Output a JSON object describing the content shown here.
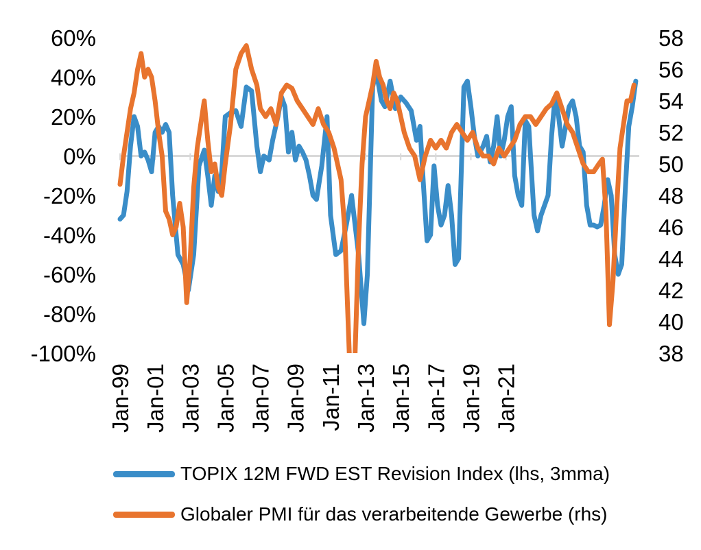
{
  "chart_data": {
    "type": "line",
    "x_ticks": [
      "Jan-99",
      "Jan-01",
      "Jan-03",
      "Jan-05",
      "Jan-07",
      "Jan-09",
      "Jan-11",
      "Jan-13",
      "Jan-15",
      "Jan-17",
      "Jan-19",
      "Jan-21"
    ],
    "y_left": {
      "ticks": [
        "60%",
        "40%",
        "20%",
        "0%",
        "-20%",
        "-40%",
        "-60%",
        "-80%",
        "-100%"
      ],
      "range": [
        -100,
        60
      ]
    },
    "y_right": {
      "ticks": [
        "58",
        "56",
        "54",
        "52",
        "50",
        "48",
        "46",
        "44",
        "42",
        "40",
        "38"
      ],
      "range": [
        38,
        58
      ]
    },
    "zero_line": true,
    "legend_position": "bottom",
    "series": [
      {
        "name": "TOPIX 12M FWD EST Revision Index (lhs, 3mma)",
        "axis": "left",
        "color": "#3A8DC8",
        "x_start": "1999-01",
        "points": [
          [
            1999.0,
            -32
          ],
          [
            1999.2,
            -30
          ],
          [
            1999.4,
            -18
          ],
          [
            1999.6,
            5
          ],
          [
            1999.8,
            20
          ],
          [
            2000.0,
            15
          ],
          [
            2000.2,
            0
          ],
          [
            2000.4,
            2
          ],
          [
            2000.6,
            -2
          ],
          [
            2000.8,
            -8
          ],
          [
            2001.0,
            12
          ],
          [
            2001.2,
            15
          ],
          [
            2001.4,
            12
          ],
          [
            2001.6,
            16
          ],
          [
            2001.8,
            12
          ],
          [
            2002.0,
            -20
          ],
          [
            2002.3,
            -50
          ],
          [
            2002.6,
            -55
          ],
          [
            2002.9,
            -68
          ],
          [
            2003.2,
            -50
          ],
          [
            2003.5,
            -5
          ],
          [
            2003.8,
            3
          ],
          [
            2004.0,
            -10
          ],
          [
            2004.2,
            -25
          ],
          [
            2004.4,
            -10
          ],
          [
            2004.6,
            -18
          ],
          [
            2004.8,
            -8
          ],
          [
            2005.0,
            20
          ],
          [
            2005.3,
            22
          ],
          [
            2005.6,
            23
          ],
          [
            2005.9,
            15
          ],
          [
            2006.2,
            35
          ],
          [
            2006.5,
            33
          ],
          [
            2006.8,
            5
          ],
          [
            2007.0,
            -8
          ],
          [
            2007.2,
            0
          ],
          [
            2007.5,
            -2
          ],
          [
            2007.7,
            8
          ],
          [
            2008.0,
            20
          ],
          [
            2008.2,
            30
          ],
          [
            2008.4,
            25
          ],
          [
            2008.6,
            2
          ],
          [
            2008.8,
            12
          ],
          [
            2009.0,
            -2
          ],
          [
            2009.2,
            5
          ],
          [
            2009.4,
            2
          ],
          [
            2009.6,
            -2
          ],
          [
            2009.8,
            -10
          ],
          [
            2010.0,
            -20
          ],
          [
            2010.2,
            -22
          ],
          [
            2010.5,
            -5
          ],
          [
            2010.8,
            20
          ],
          [
            2011.0,
            -30
          ],
          [
            2011.3,
            -50
          ],
          [
            2011.6,
            -48
          ],
          [
            2011.9,
            -35
          ],
          [
            2012.2,
            -20
          ],
          [
            2012.6,
            -50
          ],
          [
            2012.9,
            -85
          ],
          [
            2013.1,
            -60
          ],
          [
            2013.4,
            35
          ],
          [
            2013.6,
            43
          ],
          [
            2013.9,
            28
          ],
          [
            2014.1,
            25
          ],
          [
            2014.4,
            38
          ],
          [
            2014.7,
            24
          ],
          [
            2015.0,
            30
          ],
          [
            2015.3,
            27
          ],
          [
            2015.6,
            23
          ],
          [
            2015.9,
            8
          ],
          [
            2016.1,
            15
          ],
          [
            2016.3,
            -15
          ],
          [
            2016.5,
            -43
          ],
          [
            2016.7,
            -40
          ],
          [
            2016.9,
            -5
          ],
          [
            2017.1,
            -25
          ],
          [
            2017.3,
            -35
          ],
          [
            2017.5,
            -30
          ],
          [
            2017.7,
            -15
          ],
          [
            2017.9,
            -30
          ],
          [
            2018.1,
            -55
          ],
          [
            2018.3,
            -52
          ],
          [
            2018.6,
            35
          ],
          [
            2018.8,
            38
          ],
          [
            2019.0,
            25
          ],
          [
            2019.2,
            10
          ],
          [
            2019.4,
            0
          ],
          [
            2019.7,
            5
          ],
          [
            2019.9,
            10
          ],
          [
            2020.1,
            -3
          ],
          [
            2020.3,
            5
          ],
          [
            2020.5,
            20
          ],
          [
            2020.7,
            0
          ],
          [
            2020.9,
            8
          ],
          [
            2021.1,
            20
          ],
          [
            2021.3,
            25
          ],
          [
            2021.5,
            -10
          ],
          [
            2021.7,
            -20
          ],
          [
            2021.9,
            -25
          ],
          [
            2022.1,
            18
          ],
          [
            2022.3,
            15
          ],
          [
            2022.6,
            -30
          ],
          [
            2022.8,
            -38
          ],
          [
            2023.0,
            -30
          ],
          [
            2023.2,
            -25
          ],
          [
            2023.4,
            -20
          ],
          [
            2023.6,
            10
          ],
          [
            2023.8,
            30
          ],
          [
            2024.0,
            20
          ],
          [
            2024.2,
            5
          ],
          [
            2024.4,
            15
          ],
          [
            2024.6,
            25
          ],
          [
            2024.8,
            28
          ],
          [
            2025.0,
            20
          ],
          [
            2025.2,
            5
          ],
          [
            2025.4,
            2
          ],
          [
            2025.6,
            -25
          ],
          [
            2025.8,
            -35
          ],
          [
            2026.0,
            -35
          ],
          [
            2026.2,
            -36
          ],
          [
            2026.4,
            -35
          ],
          [
            2026.6,
            -25
          ],
          [
            2026.8,
            -12
          ],
          [
            2027.0,
            -20
          ],
          [
            2027.2,
            -50
          ],
          [
            2027.4,
            -60
          ],
          [
            2027.6,
            -55
          ],
          [
            2027.8,
            -18
          ],
          [
            2028.0,
            15
          ],
          [
            2028.2,
            25
          ],
          [
            2028.4,
            38
          ]
        ]
      },
      {
        "name": "Globaler PMI für das verarbeitende  Gewerbe (rhs)",
        "axis": "right",
        "color": "#E8742E",
        "points": [
          [
            1999.0,
            48.7
          ],
          [
            1999.2,
            50.5
          ],
          [
            1999.4,
            52.0
          ],
          [
            1999.6,
            53.5
          ],
          [
            1999.8,
            54.5
          ],
          [
            2000.0,
            56.0
          ],
          [
            2000.2,
            57.0
          ],
          [
            2000.4,
            55.5
          ],
          [
            2000.6,
            56.0
          ],
          [
            2000.8,
            55.5
          ],
          [
            2001.0,
            54.0
          ],
          [
            2001.2,
            52.0
          ],
          [
            2001.4,
            50.5
          ],
          [
            2001.6,
            47.0
          ],
          [
            2001.8,
            46.5
          ],
          [
            2002.0,
            45.5
          ],
          [
            2002.2,
            46.0
          ],
          [
            2002.4,
            47.5
          ],
          [
            2002.6,
            46.0
          ],
          [
            2002.8,
            41.2
          ],
          [
            2003.0,
            44.0
          ],
          [
            2003.2,
            48.5
          ],
          [
            2003.4,
            51.0
          ],
          [
            2003.6,
            52.5
          ],
          [
            2003.8,
            54.0
          ],
          [
            2004.0,
            51.5
          ],
          [
            2004.2,
            49.5
          ],
          [
            2004.4,
            50.0
          ],
          [
            2004.6,
            48.5
          ],
          [
            2004.8,
            48.0
          ],
          [
            2005.0,
            50.0
          ],
          [
            2005.3,
            52.5
          ],
          [
            2005.6,
            56.0
          ],
          [
            2005.9,
            57.0
          ],
          [
            2006.2,
            57.5
          ],
          [
            2006.5,
            56.0
          ],
          [
            2006.8,
            55.0
          ],
          [
            2007.0,
            53.5
          ],
          [
            2007.3,
            53.0
          ],
          [
            2007.6,
            53.5
          ],
          [
            2007.9,
            52.5
          ],
          [
            2008.2,
            54.5
          ],
          [
            2008.5,
            55.0
          ],
          [
            2008.8,
            54.8
          ],
          [
            2009.1,
            54.0
          ],
          [
            2009.4,
            53.5
          ],
          [
            2009.7,
            53.0
          ],
          [
            2010.0,
            52.5
          ],
          [
            2010.3,
            53.5
          ],
          [
            2010.6,
            52.5
          ],
          [
            2010.9,
            52.0
          ],
          [
            2011.2,
            51.0
          ],
          [
            2011.4,
            50.0
          ],
          [
            2011.6,
            49.0
          ],
          [
            2011.8,
            46.0
          ],
          [
            2012.0,
            40.0
          ],
          [
            2012.2,
            34.0
          ],
          [
            2012.4,
            38.0
          ],
          [
            2012.6,
            45.0
          ],
          [
            2012.8,
            50.0
          ],
          [
            2013.0,
            53.0
          ],
          [
            2013.2,
            54.0
          ],
          [
            2013.4,
            55.0
          ],
          [
            2013.6,
            56.5
          ],
          [
            2013.8,
            55.5
          ],
          [
            2014.0,
            55.0
          ],
          [
            2014.2,
            54.0
          ],
          [
            2014.4,
            53.5
          ],
          [
            2014.6,
            54.5
          ],
          [
            2014.8,
            54.0
          ],
          [
            2015.0,
            53.0
          ],
          [
            2015.2,
            52.0
          ],
          [
            2015.5,
            51.0
          ],
          [
            2015.8,
            50.5
          ],
          [
            2016.1,
            49.0
          ],
          [
            2016.4,
            50.5
          ],
          [
            2016.7,
            51.5
          ],
          [
            2017.0,
            51.0
          ],
          [
            2017.3,
            51.5
          ],
          [
            2017.6,
            51.0
          ],
          [
            2017.9,
            52.0
          ],
          [
            2018.2,
            52.5
          ],
          [
            2018.5,
            52.0
          ],
          [
            2018.8,
            51.5
          ],
          [
            2019.1,
            52.0
          ],
          [
            2019.4,
            51.0
          ],
          [
            2019.7,
            50.5
          ],
          [
            2020.0,
            50.5
          ],
          [
            2020.3,
            50.0
          ],
          [
            2020.6,
            51.0
          ],
          [
            2020.9,
            50.5
          ],
          [
            2021.2,
            51.0
          ],
          [
            2021.5,
            51.5
          ],
          [
            2021.8,
            52.5
          ],
          [
            2022.1,
            53.0
          ],
          [
            2022.4,
            53.0
          ],
          [
            2022.7,
            52.5
          ],
          [
            2023.0,
            53.0
          ],
          [
            2023.3,
            53.5
          ],
          [
            2023.6,
            53.8
          ],
          [
            2023.9,
            54.5
          ],
          [
            2024.2,
            53.5
          ],
          [
            2024.5,
            52.5
          ],
          [
            2024.8,
            52.0
          ],
          [
            2025.1,
            51.0
          ],
          [
            2025.4,
            50.0
          ],
          [
            2025.7,
            49.5
          ],
          [
            2026.0,
            49.5
          ],
          [
            2026.3,
            50.0
          ],
          [
            2026.5,
            50.3
          ],
          [
            2026.7,
            47.0
          ],
          [
            2026.9,
            39.8
          ],
          [
            2027.1,
            42.5
          ],
          [
            2027.3,
            47.0
          ],
          [
            2027.5,
            51.0
          ],
          [
            2027.7,
            52.5
          ],
          [
            2027.9,
            54.0
          ],
          [
            2028.1,
            54.0
          ],
          [
            2028.3,
            55.0
          ]
        ]
      }
    ]
  }
}
